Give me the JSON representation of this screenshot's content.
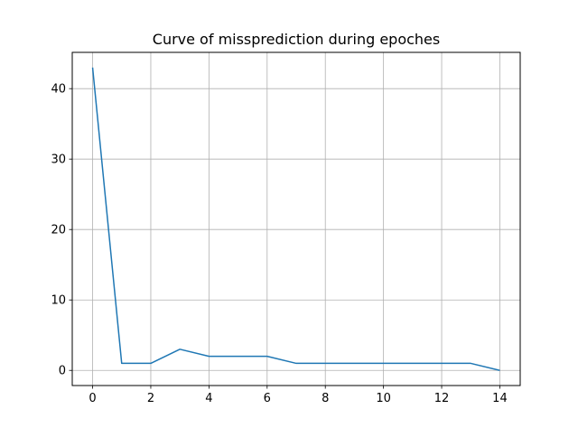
{
  "chart_data": {
    "type": "line",
    "title": "Curve of missprediction during epoches",
    "xlabel": "",
    "ylabel": "",
    "x": [
      0,
      1,
      2,
      3,
      4,
      5,
      6,
      7,
      8,
      9,
      10,
      11,
      12,
      13,
      14
    ],
    "series": [
      {
        "values": [
          43,
          1,
          1,
          3,
          2,
          2,
          2,
          1,
          1,
          1,
          1,
          1,
          1,
          1,
          0
        ]
      }
    ],
    "xlim": [
      -0.7,
      14.7
    ],
    "ylim": [
      -2.15,
      45.15
    ],
    "xticks": [
      0,
      2,
      4,
      6,
      8,
      10,
      12,
      14
    ],
    "xtick_labels": [
      "0",
      "2",
      "4",
      "6",
      "8",
      "10",
      "12",
      "14"
    ],
    "yticks": [
      0,
      10,
      20,
      30,
      40
    ],
    "ytick_labels": [
      "0",
      "10",
      "20",
      "30",
      "40"
    ],
    "grid": true,
    "line_color": "#1f77b4",
    "grid_color": "#b0b0b0"
  }
}
